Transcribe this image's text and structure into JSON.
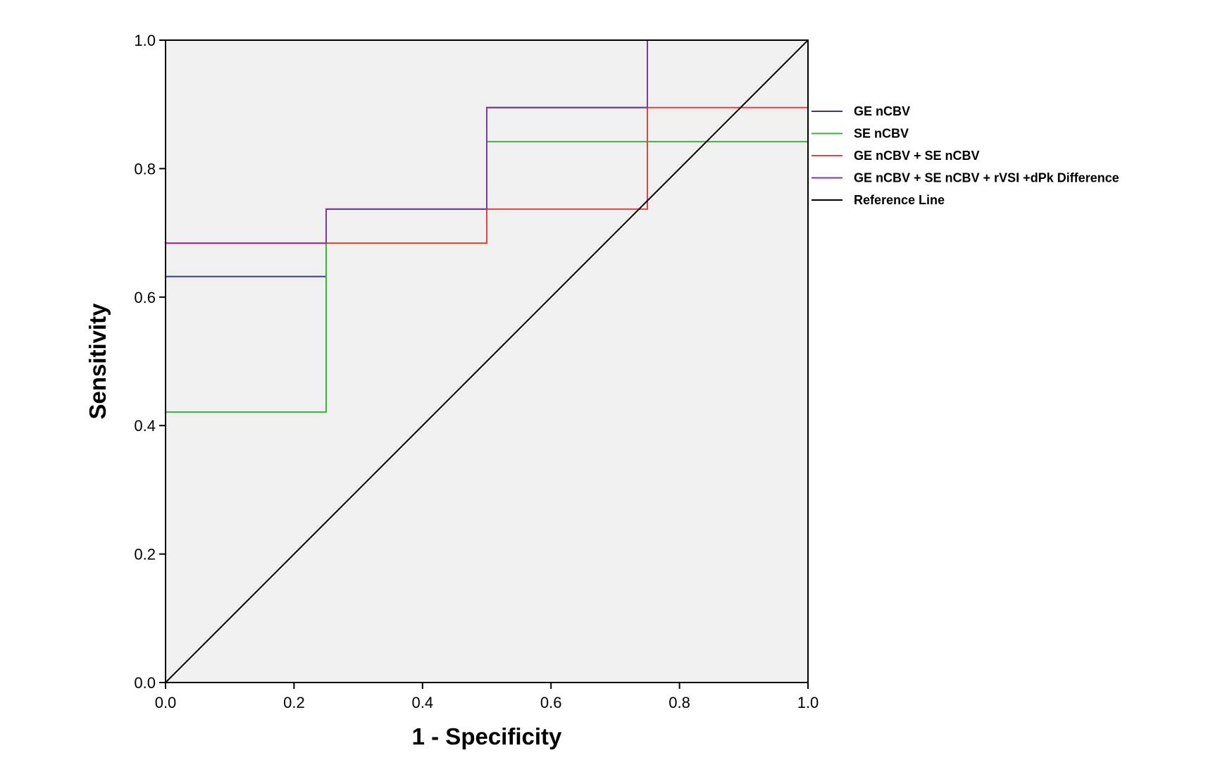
{
  "chart_data": {
    "type": "line",
    "title": "",
    "xlabel": "1 - Specificity",
    "ylabel": "Sensitivity",
    "xlim": [
      0,
      1
    ],
    "ylim": [
      0,
      1
    ],
    "xticks": [
      "0.0",
      "0.2",
      "0.4",
      "0.6",
      "0.8",
      "1.0"
    ],
    "yticks": [
      "0.0",
      "0.2",
      "0.4",
      "0.6",
      "0.8",
      "1.0"
    ],
    "plot_background": "#f0f0f0",
    "grid": false,
    "legend_position": "right",
    "series": [
      {
        "name": "GE nCBV",
        "color": "#3c3c7c",
        "x": [
          0,
          0,
          0.25,
          0.25,
          0.5,
          0.5,
          0.75,
          0.75
        ],
        "y": [
          0,
          0.632,
          0.632,
          0.737,
          0.737,
          0.895,
          0.895,
          1.0
        ]
      },
      {
        "name": "SE nCBV",
        "color": "#3cb43c",
        "x": [
          0,
          0,
          0.25,
          0.25,
          0.5,
          0.5,
          1.0
        ],
        "y": [
          0,
          0.421,
          0.421,
          0.684,
          0.684,
          0.842,
          0.842
        ]
      },
      {
        "name": "GE nCBV + SE nCBV",
        "color": "#e84040",
        "x": [
          0,
          0,
          0.25,
          0.25,
          0.5,
          0.5,
          0.75,
          0.75,
          1.0
        ],
        "y": [
          0,
          0.684,
          0.684,
          0.684,
          0.684,
          0.737,
          0.737,
          0.895,
          0.895
        ]
      },
      {
        "name": "GE nCBV + SE nCBV + rVSI +dPk Difference",
        "color": "#7a3c96",
        "x": [
          0,
          0,
          0.25,
          0.25,
          0.5,
          0.5,
          0.75,
          0.75
        ],
        "y": [
          0,
          0.684,
          0.684,
          0.737,
          0.737,
          0.895,
          0.895,
          1.0
        ]
      },
      {
        "name": "Reference Line",
        "color": "#000000",
        "x": [
          0,
          1
        ],
        "y": [
          0,
          1
        ]
      }
    ]
  }
}
